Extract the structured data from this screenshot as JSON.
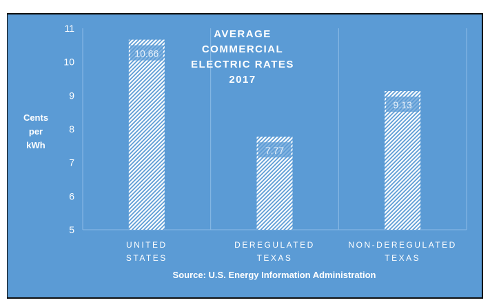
{
  "chart_data": {
    "type": "bar",
    "title_lines": [
      "AVERAGE",
      "COMMERCIAL",
      "ELECTRIC RATES",
      "2017"
    ],
    "ylabel_lines": [
      "Cents",
      "per",
      "kWh"
    ],
    "categories": [
      [
        "UNITED",
        "STATES"
      ],
      [
        "DEREGULATED",
        "TEXAS"
      ],
      [
        "NON-DEREGULATED",
        "TEXAS"
      ]
    ],
    "values": [
      10.66,
      7.77,
      9.13
    ],
    "data_labels": [
      "10.66",
      "7.77",
      "9.13"
    ],
    "ylim": [
      5,
      11
    ],
    "yticks": [
      "5",
      "6",
      "7",
      "8",
      "9",
      "10",
      "11"
    ],
    "grid": "vertical category separators",
    "source": "Source: U.S. Energy Information Administration",
    "colors": {
      "background": "#5b9bd5",
      "bar": "#ffffff"
    },
    "bar_pattern": "diagonal-hatch"
  }
}
